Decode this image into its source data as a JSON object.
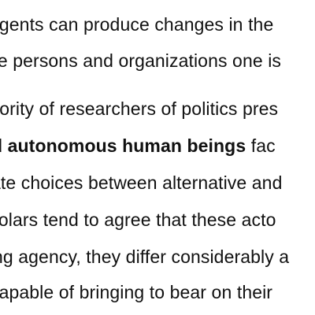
{
  "document": {
    "paragraph_1": {
      "line_1": "agents can produce changes in the",
      "line_2": "ne persons and organizations one is"
    },
    "paragraph_2": {
      "line_3": "jority of researchers of politics pres",
      "line_4_bold": "d autonomous human beings",
      "line_4_rest": " fac",
      "line_5": "ate choices between alternative and",
      "line_6": "holars tend to agree that these acto",
      "line_7": "ng agency, they differ considerably a",
      "line_8": "capable of bringing to bear on their"
    }
  }
}
